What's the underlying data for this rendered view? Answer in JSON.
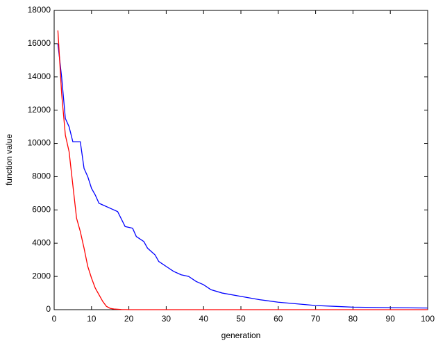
{
  "chart_data": {
    "type": "line",
    "xlabel": "generation",
    "ylabel": "function value",
    "xlim": [
      0,
      100
    ],
    "ylim": [
      0,
      18000
    ],
    "xticks": [
      0,
      10,
      20,
      30,
      40,
      50,
      60,
      70,
      80,
      90,
      100
    ],
    "yticks": [
      0,
      2000,
      4000,
      6000,
      8000,
      10000,
      12000,
      14000,
      16000,
      18000
    ],
    "grid": false,
    "series": [
      {
        "color": "#0000ff",
        "x": [
          1,
          2,
          3,
          4,
          5,
          6,
          7,
          8,
          9,
          10,
          11,
          12,
          13,
          15,
          17,
          19,
          21,
          22,
          24,
          25,
          27,
          28,
          30,
          32,
          34,
          36,
          38,
          40,
          42,
          45,
          50,
          55,
          60,
          65,
          70,
          75,
          80,
          90,
          100
        ],
        "values": [
          16000,
          14000,
          11500,
          11000,
          10100,
          10100,
          10100,
          8500,
          8000,
          7300,
          6900,
          6400,
          6300,
          6100,
          5900,
          5000,
          4900,
          4400,
          4100,
          3700,
          3300,
          2900,
          2600,
          2300,
          2100,
          2000,
          1700,
          1500,
          1200,
          1000,
          800,
          600,
          450,
          350,
          250,
          200,
          150,
          120,
          100
        ]
      },
      {
        "color": "#ff0000",
        "x": [
          1,
          2,
          3,
          4,
          5,
          6,
          7,
          8,
          9,
          10,
          11,
          12,
          13,
          14,
          15,
          16,
          18,
          20,
          100
        ],
        "values": [
          16800,
          13000,
          10500,
          9500,
          7500,
          5500,
          4700,
          3700,
          2600,
          1900,
          1300,
          900,
          500,
          200,
          80,
          40,
          10,
          0,
          0
        ]
      }
    ]
  }
}
